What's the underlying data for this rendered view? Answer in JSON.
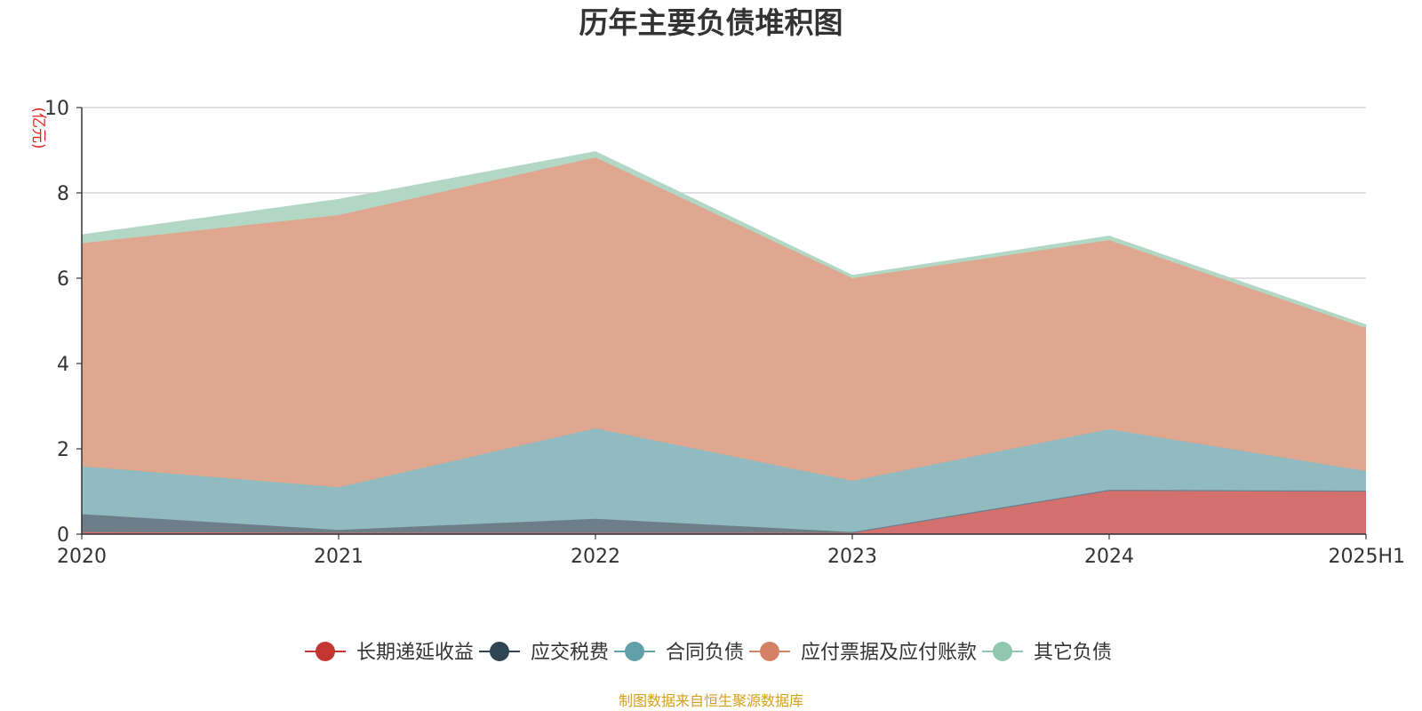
{
  "chart_data": {
    "type": "area",
    "title": "历年主要负债堆积图",
    "y_unit": "(亿元)",
    "x": [
      "2020",
      "2021",
      "2022",
      "2023",
      "2024",
      "2025H1"
    ],
    "ylim": [
      0,
      10
    ],
    "y_ticks": [
      "0",
      "2",
      "4",
      "6",
      "8",
      "10"
    ],
    "stacked": true,
    "grid": true,
    "legend_position": "bottom",
    "series": [
      {
        "name": "长期递延收益",
        "color": "#c23531",
        "fill": "#d3706d",
        "values": [
          0.05,
          0.03,
          0.03,
          0.03,
          1.02,
          1.02
        ]
      },
      {
        "name": "应交税费",
        "color": "#2f4554",
        "fill": "#6d7e89",
        "values": [
          0.42,
          0.07,
          0.33,
          0.02,
          0.02,
          0.0
        ]
      },
      {
        "name": "合同负债",
        "color": "#61a0a8",
        "fill": "#91bbc0",
        "values": [
          1.12,
          1.0,
          2.12,
          1.2,
          1.42,
          0.46
        ]
      },
      {
        "name": "应付票据及应付账款",
        "color": "#d48265",
        "fill": "#dfa790",
        "values": [
          5.23,
          6.38,
          6.35,
          4.75,
          4.43,
          3.35
        ]
      },
      {
        "name": "其它负债",
        "color": "#91c7ae",
        "fill": "#b2d7c5",
        "values": [
          0.18,
          0.35,
          0.12,
          0.05,
          0.08,
          0.06
        ]
      }
    ],
    "source": "制图数据来自恒生聚源数据库",
    "colors": {
      "unit": "#e02020",
      "source": "#d4a017",
      "grid": "#cccccc",
      "axis": "#333333"
    }
  }
}
